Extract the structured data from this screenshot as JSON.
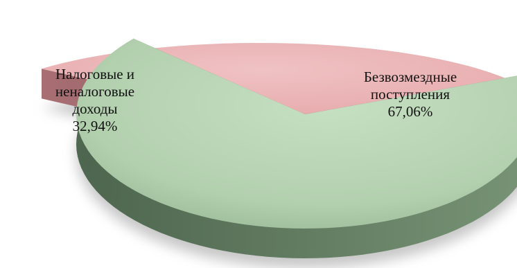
{
  "chart_data": {
    "type": "pie",
    "title": "",
    "slices": [
      {
        "name_lines": [
          "Налоговые и",
          "неналоговые",
          "доходы"
        ],
        "value_label": "32,94%",
        "value": 32.94,
        "color": "#e8aeb0"
      },
      {
        "name_lines": [
          "Безвозмездные",
          "поступления"
        ],
        "value_label": "67,06%",
        "value": 67.06,
        "color": "#b6d4b3"
      }
    ],
    "legend": "none",
    "style": "3d-exploded"
  }
}
